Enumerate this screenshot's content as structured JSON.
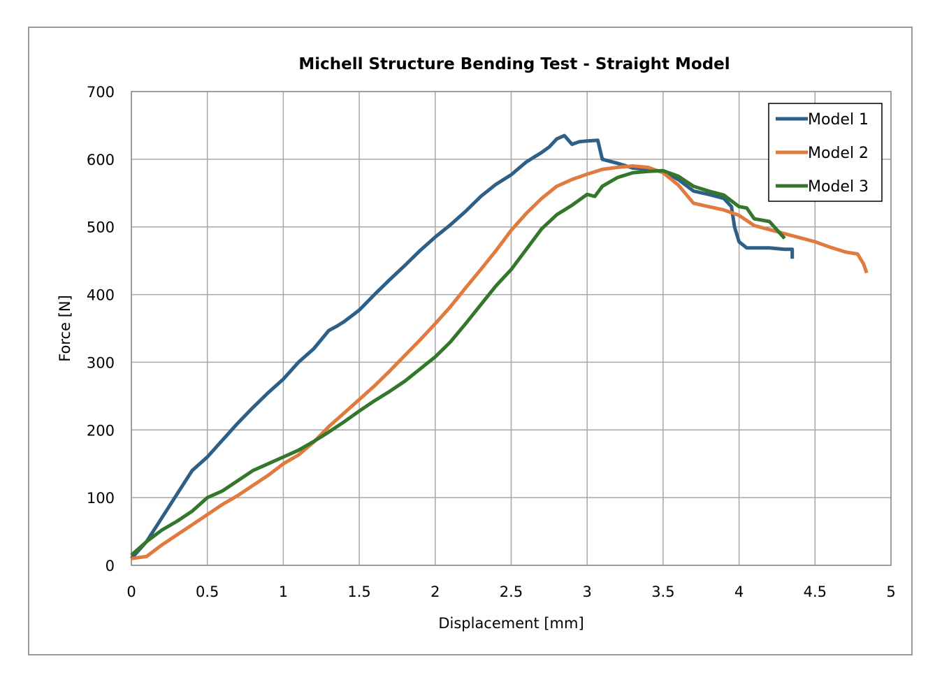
{
  "chart_data": {
    "type": "line",
    "title": "Michell Structure Bending Test - Straight Model",
    "xlabel": "Displacement [mm]",
    "ylabel": "Force [N]",
    "xlim": [
      0,
      5
    ],
    "ylim": [
      0,
      700
    ],
    "xticks": [
      0,
      0.5,
      1,
      1.5,
      2,
      2.5,
      3,
      3.5,
      4,
      4.5,
      5
    ],
    "xtick_labels": [
      "0",
      "0.5",
      "1",
      "1.5",
      "2",
      "2.5",
      "3",
      "3.5",
      "4",
      "4.5",
      "5"
    ],
    "yticks": [
      0,
      100,
      200,
      300,
      400,
      500,
      600,
      700
    ],
    "ytick_labels": [
      "0",
      "100",
      "200",
      "300",
      "400",
      "500",
      "600",
      "700"
    ],
    "grid": true,
    "legend_position": "top-right",
    "series": [
      {
        "name": "Model 1",
        "color": "#2e5f86",
        "points": [
          [
            0,
            10
          ],
          [
            0.1,
            35
          ],
          [
            0.2,
            70
          ],
          [
            0.3,
            105
          ],
          [
            0.4,
            140
          ],
          [
            0.5,
            160
          ],
          [
            0.6,
            185
          ],
          [
            0.7,
            210
          ],
          [
            0.8,
            233
          ],
          [
            0.9,
            255
          ],
          [
            1.0,
            275
          ],
          [
            1.1,
            300
          ],
          [
            1.2,
            320
          ],
          [
            1.3,
            347
          ],
          [
            1.35,
            353
          ],
          [
            1.4,
            360
          ],
          [
            1.5,
            377
          ],
          [
            1.6,
            400
          ],
          [
            1.7,
            422
          ],
          [
            1.8,
            443
          ],
          [
            1.9,
            465
          ],
          [
            2.0,
            485
          ],
          [
            2.1,
            503
          ],
          [
            2.2,
            523
          ],
          [
            2.3,
            545
          ],
          [
            2.4,
            563
          ],
          [
            2.5,
            577
          ],
          [
            2.6,
            596
          ],
          [
            2.7,
            610
          ],
          [
            2.75,
            618
          ],
          [
            2.8,
            630
          ],
          [
            2.85,
            635
          ],
          [
            2.9,
            622
          ],
          [
            2.95,
            626
          ],
          [
            3.0,
            627
          ],
          [
            3.07,
            628
          ],
          [
            3.1,
            600
          ],
          [
            3.2,
            594
          ],
          [
            3.3,
            587
          ],
          [
            3.4,
            585
          ],
          [
            3.5,
            582
          ],
          [
            3.6,
            570
          ],
          [
            3.7,
            553
          ],
          [
            3.8,
            548
          ],
          [
            3.9,
            542
          ],
          [
            3.95,
            530
          ],
          [
            3.97,
            500
          ],
          [
            4.0,
            478
          ],
          [
            4.05,
            469
          ],
          [
            4.2,
            469
          ],
          [
            4.3,
            467
          ],
          [
            4.35,
            467
          ],
          [
            4.35,
            453
          ]
        ]
      },
      {
        "name": "Model 2",
        "color": "#e07a3e",
        "points": [
          [
            0,
            10
          ],
          [
            0.1,
            13
          ],
          [
            0.2,
            30
          ],
          [
            0.3,
            45
          ],
          [
            0.4,
            60
          ],
          [
            0.5,
            75
          ],
          [
            0.6,
            90
          ],
          [
            0.7,
            103
          ],
          [
            0.8,
            118
          ],
          [
            0.9,
            133
          ],
          [
            1.0,
            150
          ],
          [
            1.1,
            163
          ],
          [
            1.2,
            182
          ],
          [
            1.3,
            205
          ],
          [
            1.4,
            225
          ],
          [
            1.5,
            245
          ],
          [
            1.6,
            265
          ],
          [
            1.7,
            287
          ],
          [
            1.8,
            310
          ],
          [
            1.9,
            333
          ],
          [
            2.0,
            357
          ],
          [
            2.1,
            382
          ],
          [
            2.2,
            410
          ],
          [
            2.3,
            437
          ],
          [
            2.4,
            465
          ],
          [
            2.5,
            495
          ],
          [
            2.6,
            520
          ],
          [
            2.7,
            542
          ],
          [
            2.8,
            560
          ],
          [
            2.9,
            570
          ],
          [
            3.0,
            578
          ],
          [
            3.1,
            585
          ],
          [
            3.2,
            588
          ],
          [
            3.3,
            590
          ],
          [
            3.4,
            588
          ],
          [
            3.5,
            580
          ],
          [
            3.6,
            562
          ],
          [
            3.7,
            535
          ],
          [
            3.8,
            530
          ],
          [
            3.9,
            525
          ],
          [
            4.0,
            517
          ],
          [
            4.1,
            502
          ],
          [
            4.2,
            496
          ],
          [
            4.3,
            490
          ],
          [
            4.4,
            484
          ],
          [
            4.5,
            478
          ],
          [
            4.6,
            470
          ],
          [
            4.7,
            463
          ],
          [
            4.78,
            460
          ],
          [
            4.82,
            445
          ],
          [
            4.84,
            432
          ]
        ]
      },
      {
        "name": "Model 3",
        "color": "#34762c",
        "points": [
          [
            0,
            15
          ],
          [
            0.1,
            35
          ],
          [
            0.2,
            52
          ],
          [
            0.3,
            65
          ],
          [
            0.4,
            80
          ],
          [
            0.5,
            100
          ],
          [
            0.6,
            110
          ],
          [
            0.7,
            125
          ],
          [
            0.8,
            140
          ],
          [
            0.9,
            150
          ],
          [
            1.0,
            160
          ],
          [
            1.1,
            170
          ],
          [
            1.2,
            183
          ],
          [
            1.3,
            197
          ],
          [
            1.4,
            212
          ],
          [
            1.5,
            228
          ],
          [
            1.6,
            243
          ],
          [
            1.7,
            257
          ],
          [
            1.8,
            272
          ],
          [
            1.9,
            290
          ],
          [
            2.0,
            308
          ],
          [
            2.1,
            330
          ],
          [
            2.2,
            357
          ],
          [
            2.3,
            385
          ],
          [
            2.4,
            413
          ],
          [
            2.5,
            437
          ],
          [
            2.6,
            467
          ],
          [
            2.7,
            497
          ],
          [
            2.8,
            518
          ],
          [
            2.9,
            532
          ],
          [
            3.0,
            548
          ],
          [
            3.05,
            545
          ],
          [
            3.1,
            560
          ],
          [
            3.2,
            573
          ],
          [
            3.3,
            580
          ],
          [
            3.4,
            582
          ],
          [
            3.5,
            583
          ],
          [
            3.6,
            575
          ],
          [
            3.7,
            560
          ],
          [
            3.8,
            553
          ],
          [
            3.9,
            547
          ],
          [
            4.0,
            530
          ],
          [
            4.05,
            528
          ],
          [
            4.1,
            512
          ],
          [
            4.2,
            508
          ],
          [
            4.3,
            483
          ]
        ]
      }
    ]
  }
}
